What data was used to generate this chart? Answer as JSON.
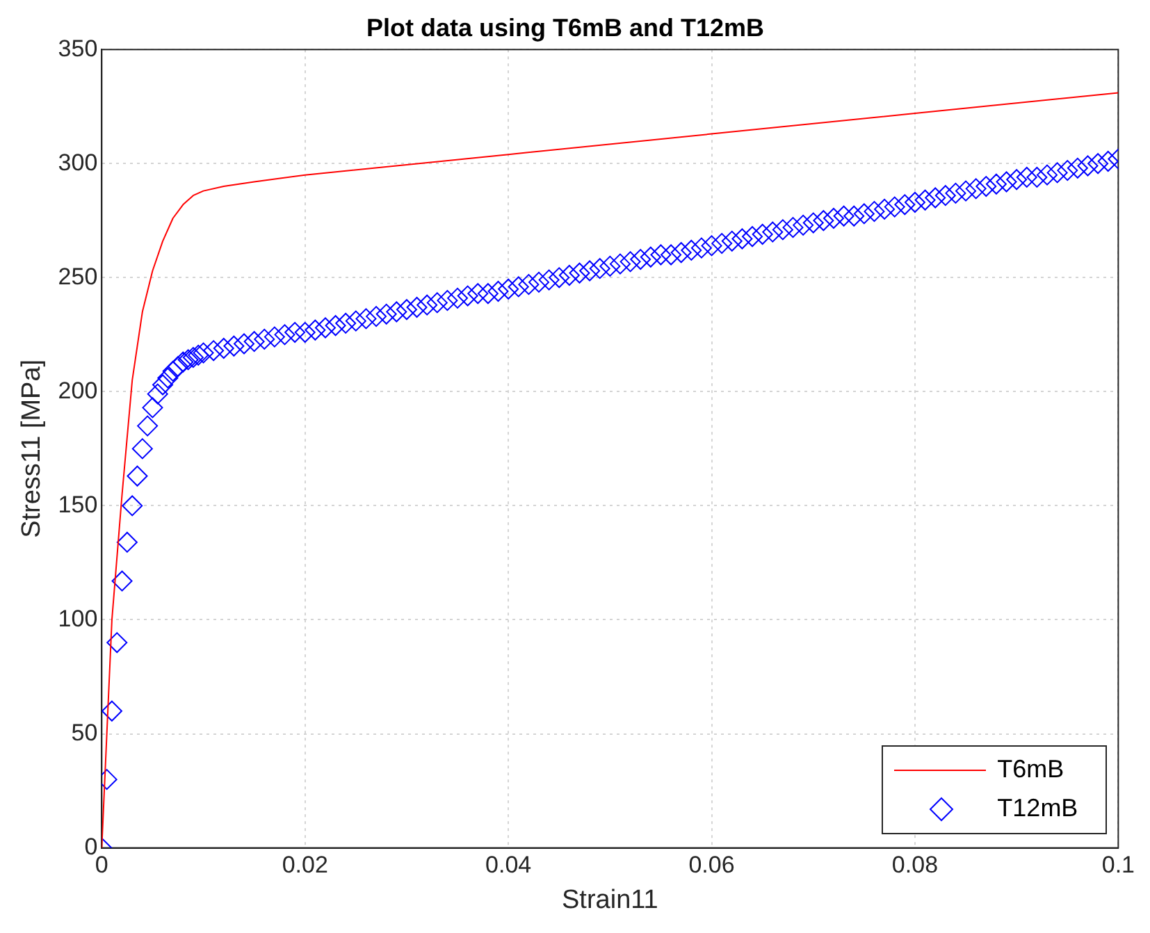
{
  "chart_data": {
    "type": "line",
    "title": "Plot data using T6mB and T12mB",
    "xlabel": "Strain11",
    "ylabel": "Stress11 [MPa]",
    "xlim": [
      0,
      0.1
    ],
    "xticks": [
      0,
      0.02,
      0.04,
      0.06,
      0.08,
      0.1
    ],
    "ylim": [
      0,
      350
    ],
    "yticks": [
      0,
      50,
      100,
      150,
      200,
      250,
      300,
      350
    ],
    "grid": true,
    "legend": "bottom right",
    "series": [
      {
        "name": "T6mB",
        "color": "#ff0000",
        "marker": "none",
        "line_style": "solid",
        "x": [
          0,
          0.0005,
          0.001,
          0.002,
          0.003,
          0.004,
          0.005,
          0.006,
          0.007,
          0.008,
          0.009,
          0.01,
          0.012,
          0.015,
          0.02,
          0.04,
          0.06,
          0.08,
          0.1
        ],
        "values": [
          0,
          50,
          100,
          155,
          205,
          235,
          253,
          266,
          276,
          282,
          286,
          288,
          290,
          292,
          295,
          304,
          313,
          322,
          331
        ]
      },
      {
        "name": "T12mB",
        "type": "scatter",
        "color": "#0000ff",
        "marker": "diamond",
        "x": [
          0,
          0.0005,
          0.001,
          0.0015,
          0.002,
          0.0025,
          0.003,
          0.0035,
          0.004,
          0.0045,
          0.005,
          0.0055,
          0.006,
          0.0065,
          0.007,
          0.0075,
          0.008,
          0.0085,
          0.009,
          0.0095,
          0.01,
          0.011,
          0.012,
          0.013,
          0.014,
          0.015,
          0.016,
          0.017,
          0.018,
          0.019,
          0.02,
          0.021,
          0.022,
          0.023,
          0.024,
          0.025,
          0.026,
          0.027,
          0.028,
          0.029,
          0.03,
          0.031,
          0.032,
          0.033,
          0.034,
          0.035,
          0.036,
          0.037,
          0.038,
          0.039,
          0.04,
          0.041,
          0.042,
          0.043,
          0.044,
          0.045,
          0.046,
          0.047,
          0.048,
          0.049,
          0.05,
          0.051,
          0.052,
          0.053,
          0.054,
          0.055,
          0.056,
          0.057,
          0.058,
          0.059,
          0.06,
          0.061,
          0.062,
          0.063,
          0.064,
          0.065,
          0.066,
          0.067,
          0.068,
          0.069,
          0.07,
          0.071,
          0.072,
          0.073,
          0.074,
          0.075,
          0.076,
          0.077,
          0.078,
          0.079,
          0.08,
          0.081,
          0.082,
          0.083,
          0.084,
          0.085,
          0.086,
          0.087,
          0.088,
          0.089,
          0.09,
          0.091,
          0.092,
          0.093,
          0.094,
          0.095,
          0.096,
          0.097,
          0.098,
          0.099,
          0.1
        ],
        "values": [
          0,
          30,
          60,
          90,
          117,
          134,
          150,
          163,
          175,
          185,
          193,
          199,
          203,
          206,
          209,
          211,
          213,
          214,
          215,
          216,
          217,
          218,
          219,
          220,
          221,
          222,
          223,
          224,
          225,
          226,
          226,
          227,
          228,
          229,
          230,
          231,
          232,
          233,
          234,
          235,
          236,
          237,
          238,
          239,
          240,
          241,
          242,
          243,
          243,
          244,
          245,
          246,
          247,
          248,
          249,
          250,
          251,
          252,
          253,
          254,
          255,
          256,
          257,
          258,
          259,
          260,
          260,
          261,
          262,
          263,
          264,
          265,
          266,
          267,
          268,
          269,
          270,
          271,
          272,
          273,
          274,
          275,
          276,
          277,
          277,
          278,
          279,
          280,
          281,
          282,
          283,
          284,
          285,
          286,
          287,
          288,
          289,
          290,
          291,
          292,
          293,
          294,
          294,
          295,
          296,
          297,
          298,
          299,
          300,
          301,
          302
        ]
      }
    ]
  }
}
